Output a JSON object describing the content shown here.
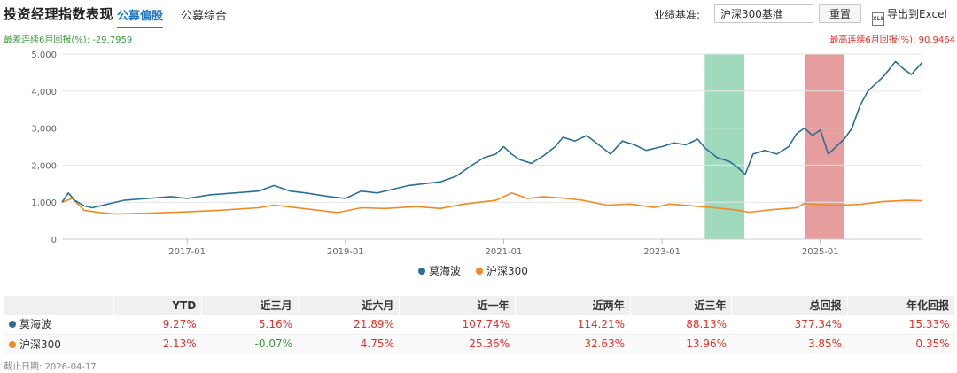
{
  "header": {
    "title": "投资经理指数表现",
    "tabs": [
      {
        "label": "公募偏股",
        "active": true
      },
      {
        "label": "公募综合",
        "active": false
      }
    ],
    "benchmark_label": "业绩基准:",
    "benchmark_value": "沪深300基准",
    "reset_label": "重置",
    "export_label": "导出到Excel",
    "export_icon": "xls-file-icon"
  },
  "stats": {
    "worst_6m": "最差连续6月回报(%): -29.7959",
    "best_6m": "最高连续6月回报(%): 90.9464"
  },
  "colors": {
    "manager": "#2b6f97",
    "benchmark": "#f08a24",
    "worst_band": "#8fd4b0",
    "best_band": "#e08c8c",
    "positive": "#e0322a",
    "negative": "#3a9a3a"
  },
  "chart_data": {
    "type": "line",
    "x_range": [
      2015.42,
      2026.29
    ],
    "ylim": [
      0,
      5000
    ],
    "y_ticks": [
      0,
      1000,
      2000,
      3000,
      4000,
      5000
    ],
    "y_tick_labels": [
      "0",
      "1,000",
      "2,000",
      "3,000",
      "4,000",
      "5,000"
    ],
    "x_ticks": [
      2017.0,
      2019.0,
      2021.0,
      2023.0,
      2025.0
    ],
    "x_tick_labels": [
      "2017-01",
      "2019-01",
      "2021-01",
      "2023-01",
      "2025-01"
    ],
    "bands": [
      {
        "name": "worst-6m-band",
        "from": 2023.54,
        "to": 2024.04,
        "color": "#8fd4b0"
      },
      {
        "name": "best-6m-band",
        "from": 2024.8,
        "to": 2025.3,
        "color": "#e08c8c"
      }
    ],
    "series": [
      {
        "name": "莫海波",
        "color": "#2b6f97",
        "points": [
          [
            2015.42,
            1000
          ],
          [
            2015.5,
            1250
          ],
          [
            2015.58,
            1050
          ],
          [
            2015.7,
            900
          ],
          [
            2015.8,
            850
          ],
          [
            2016.0,
            950
          ],
          [
            2016.2,
            1050
          ],
          [
            2016.5,
            1100
          ],
          [
            2016.8,
            1150
          ],
          [
            2017.0,
            1100
          ],
          [
            2017.3,
            1200
          ],
          [
            2017.6,
            1250
          ],
          [
            2017.9,
            1300
          ],
          [
            2018.1,
            1450
          ],
          [
            2018.3,
            1300
          ],
          [
            2018.5,
            1250
          ],
          [
            2018.8,
            1150
          ],
          [
            2019.0,
            1100
          ],
          [
            2019.2,
            1300
          ],
          [
            2019.4,
            1250
          ],
          [
            2019.6,
            1350
          ],
          [
            2019.8,
            1450
          ],
          [
            2020.0,
            1500
          ],
          [
            2020.2,
            1550
          ],
          [
            2020.4,
            1700
          ],
          [
            2020.6,
            2000
          ],
          [
            2020.75,
            2200
          ],
          [
            2020.9,
            2300
          ],
          [
            2021.0,
            2500
          ],
          [
            2021.1,
            2300
          ],
          [
            2021.2,
            2150
          ],
          [
            2021.35,
            2050
          ],
          [
            2021.5,
            2250
          ],
          [
            2021.65,
            2500
          ],
          [
            2021.75,
            2750
          ],
          [
            2021.9,
            2650
          ],
          [
            2022.05,
            2800
          ],
          [
            2022.2,
            2550
          ],
          [
            2022.35,
            2300
          ],
          [
            2022.5,
            2650
          ],
          [
            2022.65,
            2550
          ],
          [
            2022.8,
            2400
          ],
          [
            2023.0,
            2500
          ],
          [
            2023.15,
            2600
          ],
          [
            2023.3,
            2550
          ],
          [
            2023.45,
            2700
          ],
          [
            2023.55,
            2450
          ],
          [
            2023.7,
            2200
          ],
          [
            2023.85,
            2100
          ],
          [
            2023.95,
            1950
          ],
          [
            2024.05,
            1750
          ],
          [
            2024.15,
            2300
          ],
          [
            2024.3,
            2400
          ],
          [
            2024.45,
            2300
          ],
          [
            2024.6,
            2500
          ],
          [
            2024.7,
            2850
          ],
          [
            2024.8,
            3000
          ],
          [
            2024.9,
            2800
          ],
          [
            2025.0,
            2950
          ],
          [
            2025.1,
            2300
          ],
          [
            2025.2,
            2500
          ],
          [
            2025.3,
            2700
          ],
          [
            2025.4,
            3000
          ],
          [
            2025.5,
            3600
          ],
          [
            2025.6,
            4000
          ],
          [
            2025.7,
            4200
          ],
          [
            2025.8,
            4400
          ],
          [
            2025.95,
            4800
          ],
          [
            2026.05,
            4600
          ],
          [
            2026.15,
            4450
          ],
          [
            2026.29,
            4780
          ]
        ]
      },
      {
        "name": "沪深300",
        "color": "#f08a24",
        "points": [
          [
            2015.42,
            1000
          ],
          [
            2015.55,
            1100
          ],
          [
            2015.7,
            780
          ],
          [
            2015.9,
            720
          ],
          [
            2016.1,
            680
          ],
          [
            2016.5,
            700
          ],
          [
            2017.0,
            740
          ],
          [
            2017.4,
            780
          ],
          [
            2017.9,
            850
          ],
          [
            2018.1,
            920
          ],
          [
            2018.5,
            820
          ],
          [
            2018.9,
            720
          ],
          [
            2019.2,
            850
          ],
          [
            2019.5,
            830
          ],
          [
            2019.9,
            880
          ],
          [
            2020.2,
            830
          ],
          [
            2020.5,
            950
          ],
          [
            2020.9,
            1050
          ],
          [
            2021.1,
            1250
          ],
          [
            2021.3,
            1100
          ],
          [
            2021.5,
            1150
          ],
          [
            2021.8,
            1100
          ],
          [
            2022.0,
            1050
          ],
          [
            2022.3,
            920
          ],
          [
            2022.6,
            950
          ],
          [
            2022.9,
            860
          ],
          [
            2023.1,
            950
          ],
          [
            2023.5,
            880
          ],
          [
            2023.9,
            800
          ],
          [
            2024.1,
            730
          ],
          [
            2024.4,
            800
          ],
          [
            2024.7,
            850
          ],
          [
            2024.8,
            970
          ],
          [
            2025.0,
            930
          ],
          [
            2025.2,
            920
          ],
          [
            2025.5,
            940
          ],
          [
            2025.8,
            1020
          ],
          [
            2026.1,
            1050
          ],
          [
            2026.29,
            1040
          ]
        ]
      }
    ]
  },
  "table": {
    "headers": [
      "",
      "YTD",
      "近三月",
      "近六月",
      "近一年",
      "近两年",
      "近三年",
      "总回报",
      "年化回报"
    ],
    "rows": [
      {
        "name": "莫海波",
        "dot_color": "#2b6f97",
        "cells": [
          "9.27%",
          "5.16%",
          "21.89%",
          "107.74%",
          "114.21%",
          "88.13%",
          "377.34%",
          "15.33%"
        ]
      },
      {
        "name": "沪深300",
        "dot_color": "#f08a24",
        "cells": [
          "2.13%",
          "-0.07%",
          "4.75%",
          "25.36%",
          "32.63%",
          "13.96%",
          "3.85%",
          "0.35%"
        ]
      }
    ]
  },
  "footer": {
    "date_text": "截止日期: 2026-04-17"
  }
}
